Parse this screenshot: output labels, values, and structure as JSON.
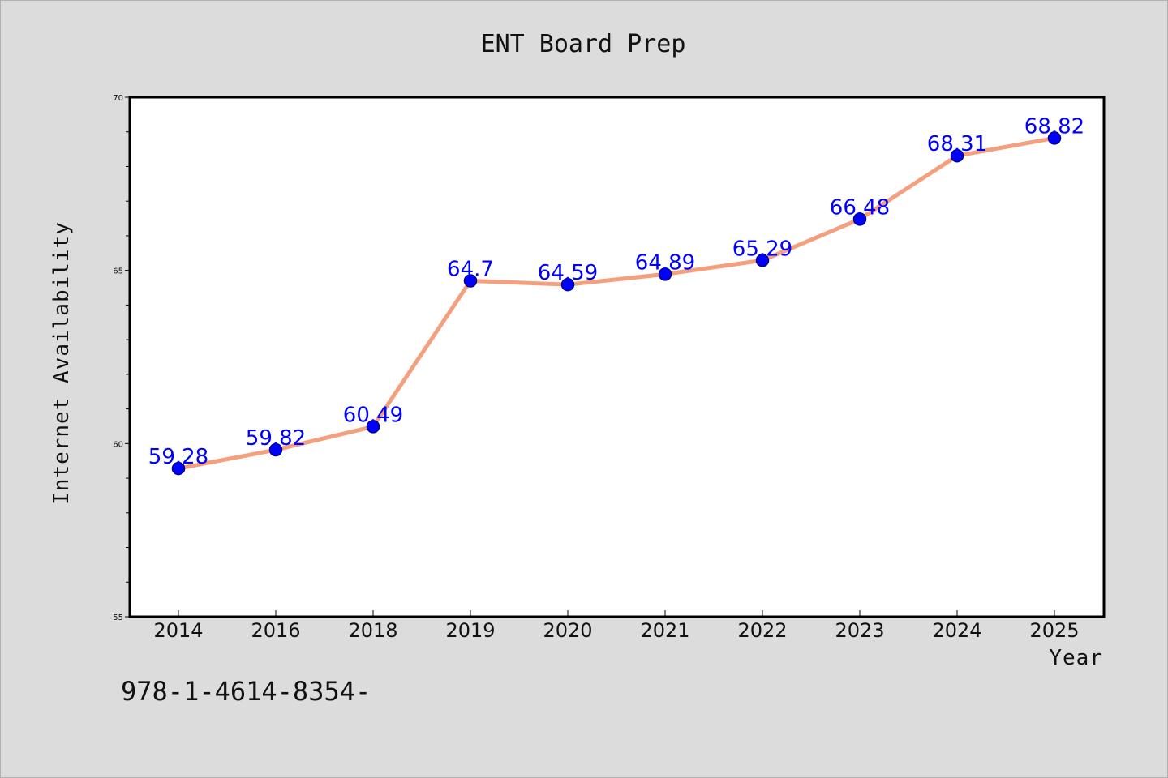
{
  "chart_data": {
    "type": "line",
    "title": "ENT Board Prep",
    "xlabel": "Year",
    "ylabel": "Internet Availability",
    "categories": [
      "2014",
      "2016",
      "2018",
      "2019",
      "2020",
      "2021",
      "2022",
      "2023",
      "2024",
      "2025"
    ],
    "series": [
      {
        "values": [
          59.28,
          59.82,
          60.49,
          64.7,
          64.59,
          64.89,
          65.29,
          66.48,
          68.31,
          68.82
        ],
        "data_labels": [
          "59.28",
          "59.82",
          "60.49",
          "64.7",
          "64.59",
          "64.89",
          "65.29",
          "66.48",
          "68.31",
          "68.82"
        ]
      }
    ],
    "ylim": [
      55,
      70
    ],
    "yticks": [
      "55",
      "60",
      "65",
      "70"
    ],
    "grid": false,
    "colors": {
      "line": "#f4a07f",
      "marker_fill": "#0000ff",
      "marker_edge": "#00008b",
      "label": "#0000ff"
    }
  },
  "footer": {
    "text": "978-1-4614-8354-"
  }
}
